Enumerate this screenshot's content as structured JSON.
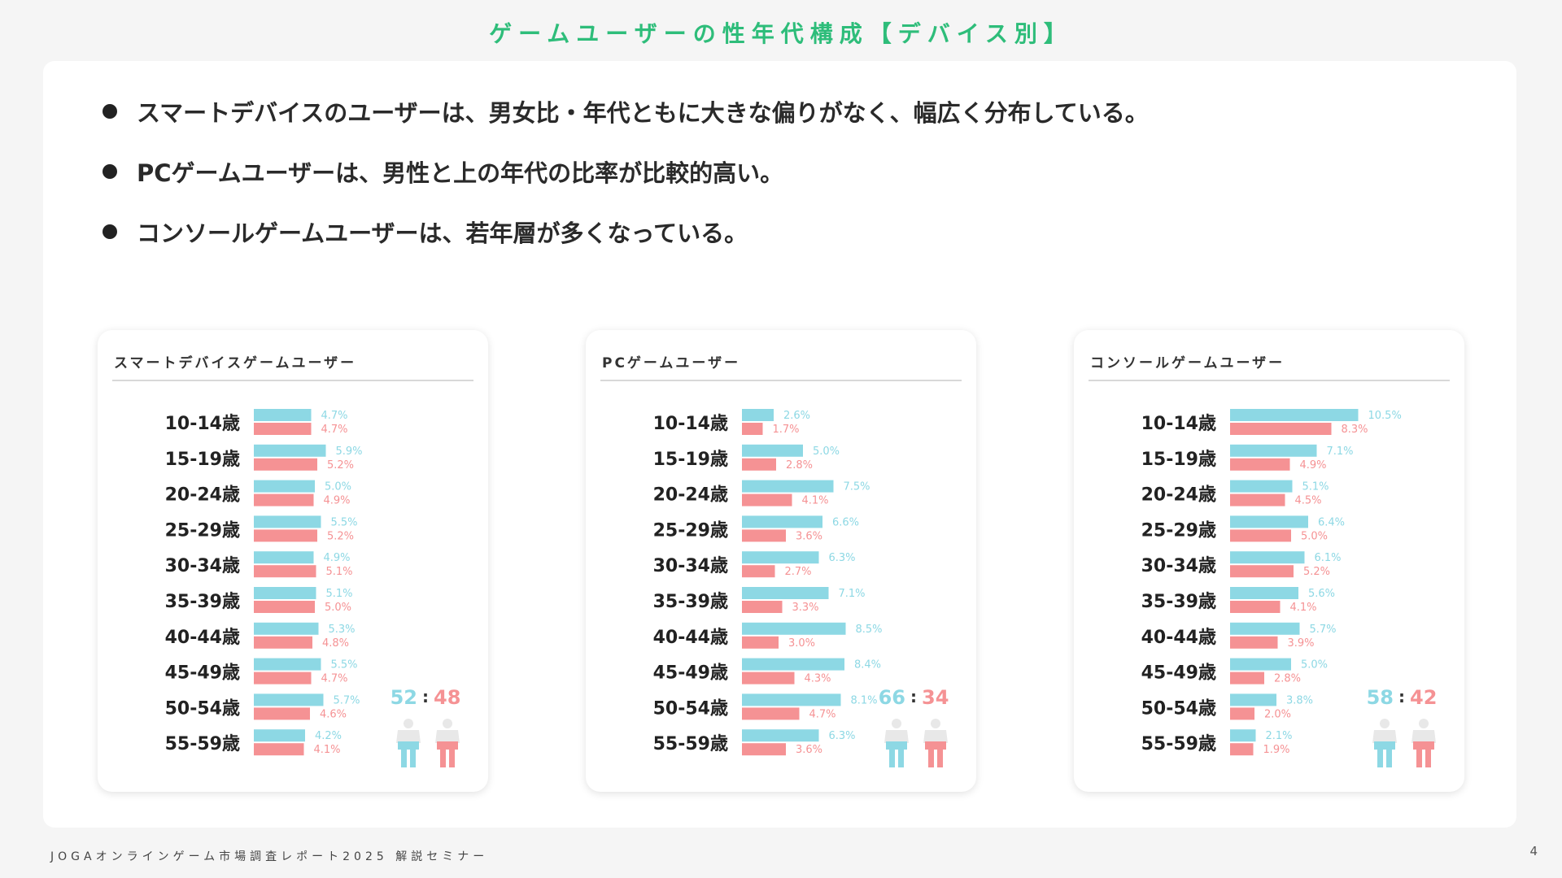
{
  "title": "ゲームユーザーの性年代構成【デバイス別】",
  "bullets": [
    "スマートデバイスのユーザーは、男女比・年代ともに大きな偏りがなく、幅広く分布している。",
    "PCゲームユーザーは、男性と上の年代の比率が比較的高い。",
    "コンソールゲームユーザーは、若年層が多くなっている。"
  ],
  "footer": "JOGAオンラインゲーム市場調査レポート2025 解説セミナー",
  "page_number": "4",
  "colors": {
    "male": "#8dd8e4",
    "female": "#f59294",
    "title": "#2ebd7a"
  },
  "icons": {
    "male": "male-person-icon",
    "female": "female-person-icon"
  },
  "chart_data": [
    {
      "type": "bar",
      "title": "スマートデバイスゲームユーザー",
      "categories": [
        "10-14歳",
        "15-19歳",
        "20-24歳",
        "25-29歳",
        "30-34歳",
        "35-39歳",
        "40-44歳",
        "45-49歳",
        "50-54歳",
        "55-59歳"
      ],
      "series": [
        {
          "values": [
            4.7,
            5.9,
            5.0,
            5.5,
            4.9,
            5.1,
            5.3,
            5.5,
            5.7,
            4.2
          ],
          "labels": [
            "4.7%",
            "5.9%",
            "5.0%",
            "5.5%",
            "4.9%",
            "5.1%",
            "5.3%",
            "5.5%",
            "5.7%",
            "4.2%"
          ]
        },
        {
          "values": [
            4.7,
            5.2,
            4.9,
            5.2,
            5.1,
            5.0,
            4.8,
            4.7,
            4.6,
            4.1
          ],
          "labels": [
            "4.7%",
            "5.2%",
            "4.9%",
            "5.2%",
            "5.1%",
            "5.0%",
            "4.8%",
            "4.7%",
            "4.6%",
            "4.1%"
          ]
        }
      ],
      "ratio": {
        "male": "52",
        "separator": ":",
        "female": "48"
      }
    },
    {
      "type": "bar",
      "title": "PCゲームユーザー",
      "categories": [
        "10-14歳",
        "15-19歳",
        "20-24歳",
        "25-29歳",
        "30-34歳",
        "35-39歳",
        "40-44歳",
        "45-49歳",
        "50-54歳",
        "55-59歳"
      ],
      "series": [
        {
          "values": [
            2.6,
            5.0,
            7.5,
            6.6,
            6.3,
            7.1,
            8.5,
            8.4,
            8.1,
            6.3
          ],
          "labels": [
            "2.6%",
            "5.0%",
            "7.5%",
            "6.6%",
            "6.3%",
            "7.1%",
            "8.5%",
            "8.4%",
            "8.1%",
            "6.3%"
          ]
        },
        {
          "values": [
            1.7,
            2.8,
            4.1,
            3.6,
            2.7,
            3.3,
            3.0,
            4.3,
            4.7,
            3.6
          ],
          "labels": [
            "1.7%",
            "2.8%",
            "4.1%",
            "3.6%",
            "2.7%",
            "3.3%",
            "3.0%",
            "4.3%",
            "4.7%",
            "3.6%"
          ]
        }
      ],
      "ratio": {
        "male": "66",
        "separator": ":",
        "female": "34"
      }
    },
    {
      "type": "bar",
      "title": "コンソールゲームユーザー",
      "categories": [
        "10-14歳",
        "15-19歳",
        "20-24歳",
        "25-29歳",
        "30-34歳",
        "35-39歳",
        "40-44歳",
        "45-49歳",
        "50-54歳",
        "55-59歳"
      ],
      "series": [
        {
          "values": [
            10.5,
            7.1,
            5.1,
            6.4,
            6.1,
            5.6,
            5.7,
            5.0,
            3.8,
            2.1
          ],
          "labels": [
            "10.5%",
            "7.1%",
            "5.1%",
            "6.4%",
            "6.1%",
            "5.6%",
            "5.7%",
            "5.0%",
            "3.8%",
            "2.1%"
          ]
        },
        {
          "values": [
            8.3,
            4.9,
            4.5,
            5.0,
            5.2,
            4.1,
            3.9,
            2.8,
            2.0,
            1.9
          ],
          "labels": [
            "8.3%",
            "4.9%",
            "4.5%",
            "5.0%",
            "5.2%",
            "4.1%",
            "3.9%",
            "2.8%",
            "2.0%",
            "1.9%"
          ]
        }
      ],
      "ratio": {
        "male": "58",
        "separator": ":",
        "female": "42"
      }
    }
  ]
}
